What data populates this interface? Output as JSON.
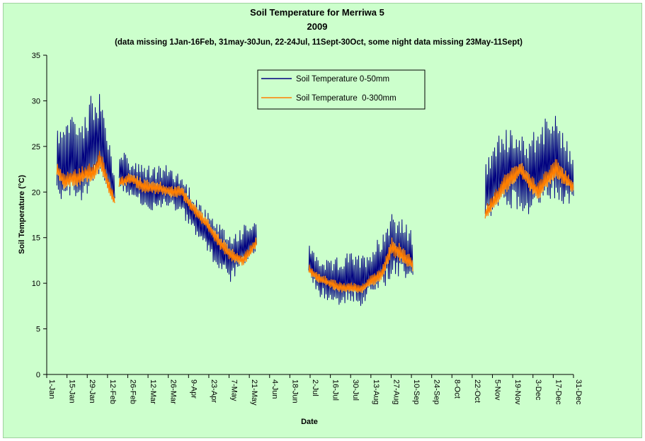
{
  "chart_data": {
    "type": "line",
    "title": "Soil Temperature for Merriwa 5",
    "title_line2": "2009",
    "subtitle": "(data missing 1Jan-16Feb, 31may-30Jun, 22-24Jul, 11Sept-30Oct, some night data missing 23May-11Sept)",
    "xlabel": "Date",
    "ylabel": "Soil Temperature (°C)",
    "ylim": [
      0,
      35
    ],
    "yticks": [
      "0",
      "5",
      "10",
      "15",
      "20",
      "25",
      "30",
      "35"
    ],
    "xlim_days": [
      0,
      364
    ],
    "xtick_labels": [
      "1-Jan",
      "15-Jan",
      "29-Jan",
      "12-Feb",
      "26-Feb",
      "12-Mar",
      "26-Mar",
      "9-Apr",
      "23-Apr",
      "7-May",
      "21-May",
      "4-Jun",
      "18-Jun",
      "2-Jul",
      "16-Jul",
      "30-Jul",
      "13-Aug",
      "27-Aug",
      "10-Sep",
      "24-Sep",
      "8-Oct",
      "22-Oct",
      "5-Nov",
      "19-Nov",
      "3-Dec",
      "17-Dec",
      "31-Dec"
    ],
    "grid": false,
    "legend_position": "top-center",
    "series": [
      {
        "name": "Soil Temperature 0-50mm",
        "color": "#000080",
        "segments": [
          {
            "start": "2009-01-08",
            "end": "2009-02-17",
            "mean": [
              23.5,
              22,
              24,
              22.5,
              24,
              25,
              26,
              23,
              20
            ],
            "amp": [
              3.5,
              4,
              4,
              4.5,
              4.5,
              5,
              4.5,
              3,
              1.5
            ]
          },
          {
            "start": "2009-02-20",
            "end": "2009-05-26",
            "mean": [
              22.5,
              21,
              20.5,
              20,
              20.5,
              19.5,
              17.5,
              15.5,
              13.5,
              12.5,
              14,
              15
            ],
            "amp": [
              2,
              2,
              2,
              2.5,
              2,
              2,
              2,
              2,
              2.5,
              2.5,
              2,
              1.5
            ]
          },
          {
            "start": "2009-07-01",
            "end": "2009-09-11",
            "mean": [
              12.5,
              10.5,
              10,
              10,
              10.5,
              10,
              11,
              12,
              14,
              13.5,
              12.5
            ],
            "amp": [
              1.5,
              2,
              2,
              2.5,
              2.5,
              2.5,
              2.5,
              3,
              3.5,
              3,
              2.5
            ]
          },
          {
            "start": "2009-10-31",
            "end": "2009-12-31",
            "mean": [
              20,
              21,
              22.5,
              22,
              22,
              21.5,
              22.5,
              23,
              23.5,
              22,
              21
            ],
            "amp": [
              3,
              3.5,
              4,
              4,
              4,
              4,
              4,
              4.5,
              4.5,
              3.5,
              2.5
            ]
          }
        ]
      },
      {
        "name": "Soil Temperature  0-300mm",
        "color": "#ff7f00",
        "segments": [
          {
            "start": "2009-01-08",
            "end": "2009-02-17",
            "mean": [
              22.5,
              21,
              21.5,
              21.5,
              22,
              22,
              23.5,
              21,
              19
            ],
            "amp": [
              0.6,
              0.8,
              0.8,
              0.9,
              0.9,
              1,
              1,
              0.8,
              0.5
            ]
          },
          {
            "start": "2009-02-20",
            "end": "2009-05-26",
            "mean": [
              21,
              21.5,
              20.5,
              20.5,
              20,
              20,
              18,
              16.5,
              14.5,
              13,
              12.5,
              14.5
            ],
            "amp": [
              0.5,
              0.6,
              0.7,
              0.7,
              0.6,
              0.6,
              0.6,
              0.6,
              0.7,
              0.7,
              0.6,
              0.5
            ]
          },
          {
            "start": "2009-07-01",
            "end": "2009-09-11",
            "mean": [
              11.5,
              10.5,
              10,
              9.5,
              9.5,
              9.3,
              10.2,
              11,
              14,
              13,
              12
            ],
            "amp": [
              0.5,
              0.5,
              0.5,
              0.5,
              0.5,
              0.5,
              0.6,
              0.7,
              0.9,
              0.9,
              0.7
            ]
          },
          {
            "start": "2009-10-31",
            "end": "2009-12-31",
            "mean": [
              17.5,
              19,
              20.5,
              21.5,
              22.5,
              21,
              20,
              21.5,
              22.5,
              21.5,
              20.5
            ],
            "amp": [
              0.7,
              0.8,
              1,
              1,
              1,
              0.9,
              0.9,
              1,
              1,
              0.8,
              0.6
            ]
          }
        ]
      }
    ]
  }
}
